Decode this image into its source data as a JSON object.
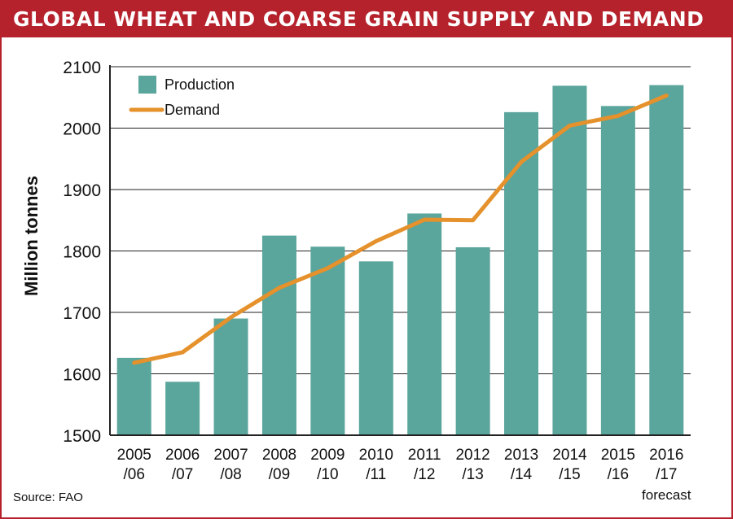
{
  "header": {
    "title": "GLOBAL WHEAT AND COARSE GRAIN SUPPLY AND DEMAND"
  },
  "footer": {
    "source": "Source: FAO"
  },
  "colors": {
    "bar": "#5aa59c",
    "line": "#e5912c",
    "accent": "#b5222c",
    "grid": "#222222"
  },
  "chart_data": {
    "type": "bar",
    "title": "GLOBAL WHEAT AND COARSE GRAIN SUPPLY AND DEMAND",
    "xlabel": "",
    "ylabel": "Million tonnes",
    "ylim": [
      1500,
      2100
    ],
    "yticks": [
      1500,
      1600,
      1700,
      1800,
      1900,
      2000,
      2100
    ],
    "grid": true,
    "legend_position": "top-left",
    "categories": [
      [
        "2005",
        "/06"
      ],
      [
        "2006",
        "/07"
      ],
      [
        "2007",
        "/08"
      ],
      [
        "2008",
        "/09"
      ],
      [
        "2009",
        "/10"
      ],
      [
        "2010",
        "/11"
      ],
      [
        "2011",
        "/12"
      ],
      [
        "2012",
        "/13"
      ],
      [
        "2013",
        "/14"
      ],
      [
        "2014",
        "/15"
      ],
      [
        "2015",
        "/16"
      ],
      [
        "2016",
        "/17"
      ]
    ],
    "category_note": {
      "index": 11,
      "text": "forecast"
    },
    "series": [
      {
        "name": "Production",
        "type": "bar",
        "values": [
          1626,
          1587,
          1690,
          1825,
          1807,
          1783,
          1861,
          1806,
          2026,
          2069,
          2036,
          2070
        ]
      },
      {
        "name": "Demand",
        "type": "line",
        "values": [
          1618,
          1635,
          1692,
          1740,
          1772,
          1816,
          1851,
          1850,
          1945,
          2004,
          2020,
          2053
        ]
      }
    ]
  }
}
